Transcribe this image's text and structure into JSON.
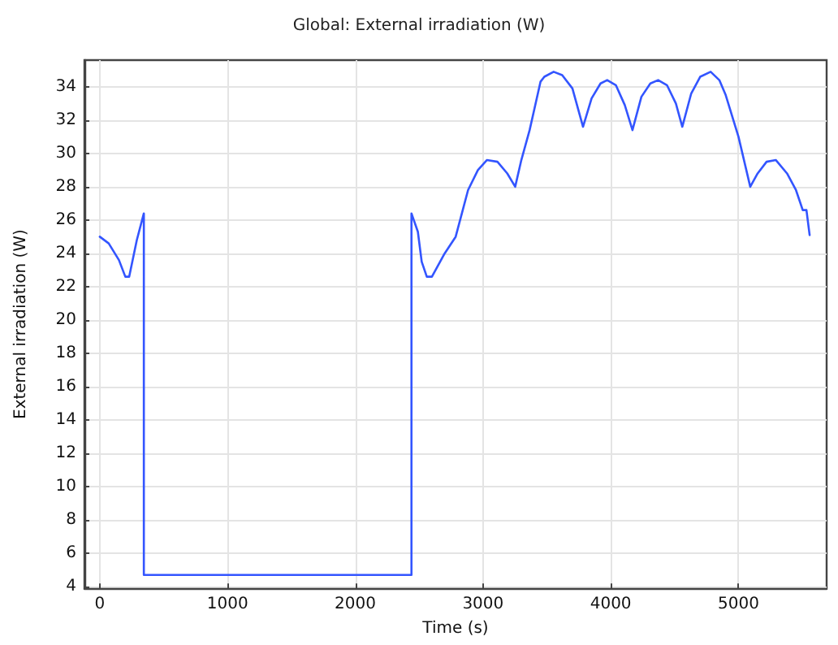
{
  "chart_data": {
    "type": "line",
    "title": "Global: External irradiation (W)",
    "xlabel": "Time (s)",
    "ylabel": "External irradiation (W)",
    "xlim": [
      -120,
      5690
    ],
    "xticks": [
      0,
      1000,
      2000,
      3000,
      4000,
      5000
    ],
    "ylim": [
      3.9,
      35.6
    ],
    "yticks": [
      4,
      6,
      8,
      10,
      12,
      14,
      16,
      18,
      20,
      22,
      24,
      26,
      28,
      30,
      32,
      34
    ],
    "grid": true,
    "marker": "none",
    "line_style": "solid",
    "series": [
      {
        "color": "#3355ff",
        "x": [
          0,
          70,
          150,
          200,
          230,
          290,
          345,
          345,
          2440,
          2440,
          2490,
          2520,
          2560,
          2600,
          2700,
          2786,
          2883,
          2960,
          3030,
          3113,
          3190,
          3252,
          3300,
          3365,
          3450,
          3480,
          3553,
          3620,
          3700,
          3783,
          3850,
          3920,
          3972,
          4040,
          4110,
          4170,
          4240,
          4310,
          4371,
          4440,
          4510,
          4560,
          4630,
          4700,
          4782,
          4850,
          4900,
          5000,
          5092,
          5150,
          5220,
          5293,
          5380,
          5450,
          5503,
          5532,
          5557
        ],
        "values": [
          25.0,
          24.6,
          23.6,
          22.6,
          22.6,
          24.8,
          26.4,
          4.7,
          4.7,
          26.4,
          25.3,
          23.5,
          22.6,
          22.6,
          24.0,
          25.0,
          27.8,
          29.0,
          29.6,
          29.5,
          28.8,
          28.0,
          29.6,
          31.4,
          34.3,
          34.6,
          34.9,
          34.7,
          33.9,
          31.6,
          33.3,
          34.2,
          34.4,
          34.1,
          32.9,
          31.4,
          33.4,
          34.2,
          34.4,
          34.1,
          33.0,
          31.6,
          33.6,
          34.6,
          34.9,
          34.4,
          33.5,
          31.0,
          28.0,
          28.8,
          29.5,
          29.6,
          28.8,
          27.8,
          26.6,
          26.6,
          25.1
        ]
      }
    ]
  }
}
